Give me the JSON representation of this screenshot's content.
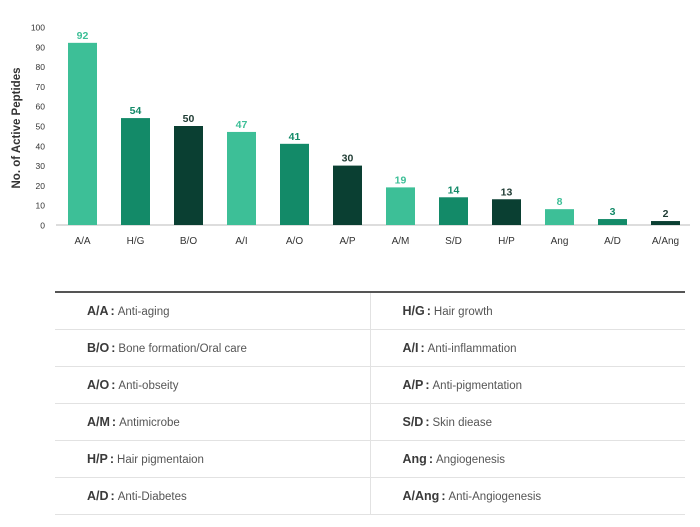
{
  "chart_data": {
    "type": "bar",
    "title": "",
    "xlabel": "",
    "ylabel": "No. of Active Peptides",
    "ylim": [
      0,
      100
    ],
    "yticks": [
      0,
      10,
      20,
      30,
      40,
      50,
      60,
      70,
      80,
      90,
      100
    ],
    "grid": false,
    "categories": [
      "A/A",
      "H/G",
      "B/O",
      "A/I",
      "A/O",
      "A/P",
      "A/M",
      "S/D",
      "H/P",
      "Ang",
      "A/D",
      "A/Ang"
    ],
    "values": [
      92,
      54,
      50,
      47,
      41,
      30,
      19,
      14,
      13,
      8,
      3,
      2
    ],
    "bar_colors": [
      "#3dbf97",
      "#138a68",
      "#0a3f32",
      "#3dbf97",
      "#138a68",
      "#0a3f32",
      "#3dbf97",
      "#138a68",
      "#0a3f32",
      "#3dbf97",
      "#138a68",
      "#0a3f32"
    ],
    "label_colors": [
      "#3dbf97",
      "#138a68",
      "#1f3b33",
      "#3dbf97",
      "#138a68",
      "#1f3b33",
      "#3dbf97",
      "#138a68",
      "#1f3b33",
      "#3dbf97",
      "#138a68",
      "#1f3b33"
    ]
  },
  "legend": {
    "separator": ":",
    "rows": [
      [
        {
          "abbr": "A/A",
          "desc": "Anti-aging"
        },
        {
          "abbr": "H/G",
          "desc": "Hair growth"
        }
      ],
      [
        {
          "abbr": "B/O",
          "desc": "Bone formation/Oral care"
        },
        {
          "abbr": "A/I",
          "desc": "Anti-inflammation"
        }
      ],
      [
        {
          "abbr": "A/O",
          "desc": "Anti-obseity"
        },
        {
          "abbr": "A/P",
          "desc": "Anti-pigmentation"
        }
      ],
      [
        {
          "abbr": "A/M",
          "desc": "Antimicrobe"
        },
        {
          "abbr": "S/D",
          "desc": "Skin diease"
        }
      ],
      [
        {
          "abbr": "H/P",
          "desc": "Hair pigmentaion"
        },
        {
          "abbr": "Ang",
          "desc": "Angiogenesis"
        }
      ],
      [
        {
          "abbr": "A/D",
          "desc": "Anti-Diabetes"
        },
        {
          "abbr": "A/Ang",
          "desc": "Anti-Angiogenesis"
        }
      ]
    ]
  }
}
